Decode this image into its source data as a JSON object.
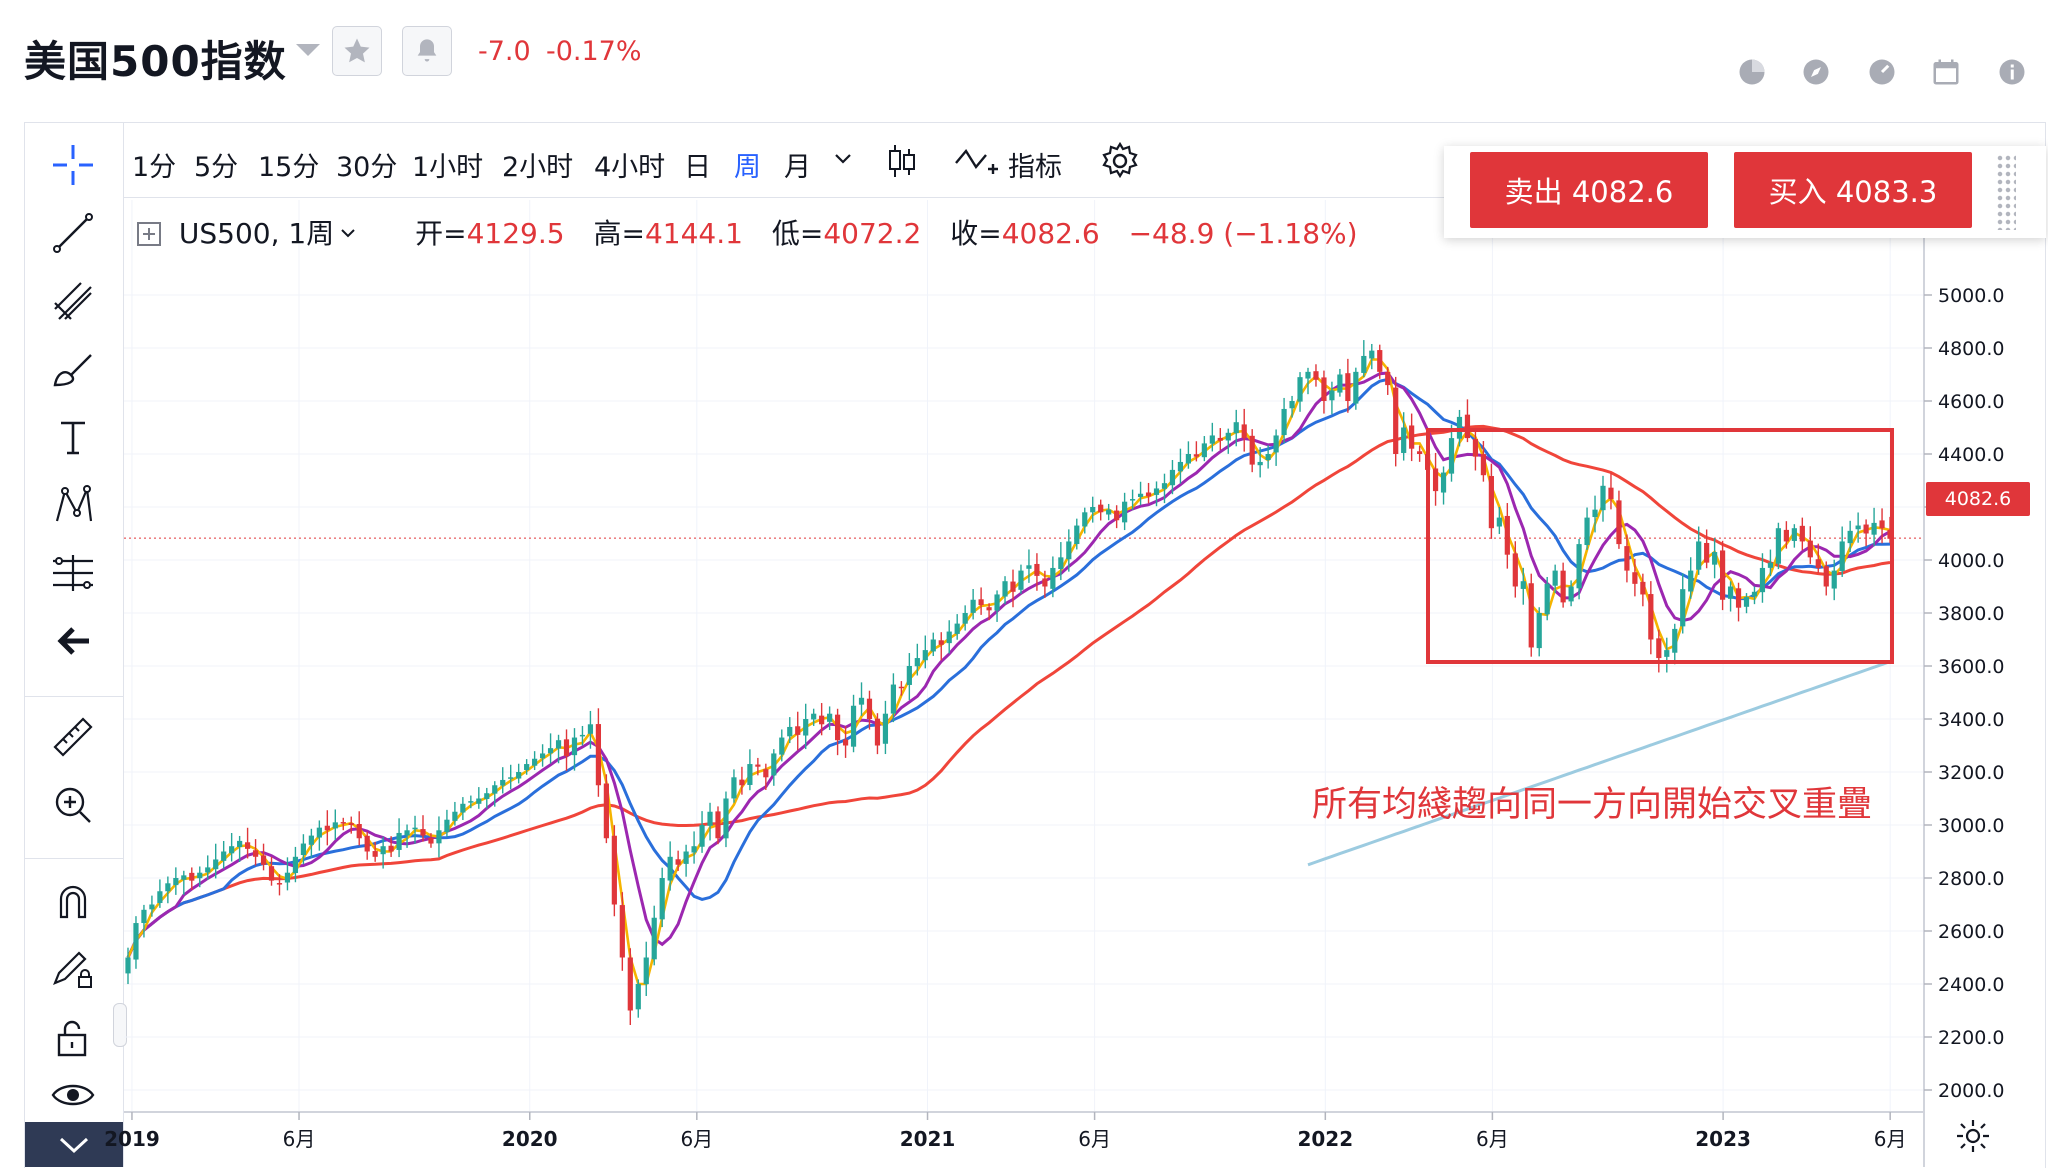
{
  "header": {
    "title": "美国500指数",
    "change_abs": "-7.0",
    "change_pct": "-0.17%",
    "icons": [
      "star-icon",
      "bell-icon",
      "pie-chart-icon",
      "compass-icon",
      "gauge-icon",
      "calendar-icon",
      "info-icon"
    ]
  },
  "toolbar": {
    "timeframes": [
      "1分",
      "5分",
      "15分",
      "30分",
      "1小时",
      "2小时",
      "4小时",
      "日",
      "周",
      "月"
    ],
    "active": "周",
    "indicators_label": "指标"
  },
  "legend": {
    "symbol": "US500, 1周",
    "open_label": "开=",
    "open": "4129.5",
    "high_label": "高=",
    "high": "4144.1",
    "low_label": "低=",
    "low": "4072.2",
    "close_label": "收=",
    "close": "4082.6",
    "change": "−48.9 (−1.18%)"
  },
  "trade": {
    "sell_label": "卖出 4082.6",
    "buy_label": "买入 4083.3"
  },
  "annotation": "所有均綫趨向同一方向開始交叉重疊",
  "price_tag": "4082.6",
  "colors": {
    "up": "#26a69a",
    "down": "#e0363a",
    "ma_fast": "#f5b400",
    "ma_mid": "#9c27b0",
    "ma_slow": "#2a6fdb",
    "ma_long": "#f0453a",
    "ma_longest": "#9ccbe0",
    "accent": "#2962ff"
  },
  "chart_data": {
    "type": "candlestick",
    "interval": "1周",
    "symbol": "US500",
    "ylim": [
      1900,
      5100
    ],
    "y_ticks": [
      "5000.0",
      "4800.0",
      "4600.0",
      "4400.0",
      "4200.0",
      "4000.0",
      "3800.0",
      "3600.0",
      "3400.0",
      "3200.0",
      "3000.0",
      "2800.0",
      "2600.0",
      "2400.0",
      "2200.0",
      "2000.0"
    ],
    "x_ticks": [
      {
        "label": "2019",
        "t": 2019.0,
        "bold": true
      },
      {
        "label": "6月",
        "t": 2019.42,
        "bold": false
      },
      {
        "label": "2020",
        "t": 2020.0,
        "bold": true
      },
      {
        "label": "6月",
        "t": 2020.42,
        "bold": false
      },
      {
        "label": "2021",
        "t": 2021.0,
        "bold": true
      },
      {
        "label": "6月",
        "t": 2021.42,
        "bold": false
      },
      {
        "label": "2022",
        "t": 2022.0,
        "bold": true
      },
      {
        "label": "6月",
        "t": 2022.42,
        "bold": false
      },
      {
        "label": "2023",
        "t": 2023.0,
        "bold": true
      },
      {
        "label": "6月",
        "t": 2023.42,
        "bold": false
      }
    ],
    "xlim": [
      2018.98,
      2023.5
    ],
    "last_price": 4082.6,
    "closes_weekly": [
      2500,
      2630,
      2680,
      2700,
      2750,
      2780,
      2800,
      2810,
      2790,
      2820,
      2840,
      2870,
      2900,
      2920,
      2940,
      2910,
      2880,
      2850,
      2790,
      2780,
      2820,
      2880,
      2930,
      2960,
      2990,
      2980,
      3010,
      3010,
      3000,
      2950,
      2900,
      2880,
      2920,
      2900,
      2970,
      2980,
      2990,
      2960,
      2930,
      2980,
      3020,
      3050,
      3080,
      3090,
      3100,
      3120,
      3150,
      3170,
      3180,
      3200,
      3230,
      3250,
      3270,
      3290,
      3320,
      3260,
      3330,
      3340,
      3380,
      3150,
      2950,
      2700,
      2500,
      2300,
      2400,
      2500,
      2650,
      2800,
      2880,
      2850,
      2900,
      2920,
      3000,
      3050,
      2950,
      3100,
      3180,
      3150,
      3230,
      3220,
      3180,
      3270,
      3330,
      3370,
      3340,
      3400,
      3420,
      3380,
      3420,
      3320,
      3300,
      3450,
      3480,
      3400,
      3300,
      3420,
      3530,
      3520,
      3600,
      3630,
      3660,
      3700,
      3680,
      3730,
      3760,
      3800,
      3850,
      3830,
      3810,
      3870,
      3920,
      3880,
      3960,
      3980,
      3940,
      3900,
      3970,
      4010,
      4070,
      4130,
      4180,
      4200,
      4180,
      4190,
      4150,
      4220,
      4230,
      4250,
      4240,
      4270,
      4290,
      4340,
      4370,
      4400,
      4390,
      4440,
      4470,
      4450,
      4480,
      4520,
      4460,
      4360,
      4370,
      4400,
      4470,
      4570,
      4600,
      4690,
      4710,
      4680,
      4600,
      4640,
      4700,
      4600,
      4710,
      4770,
      4790,
      4710,
      4660,
      4400,
      4500,
      4420,
      4400,
      4340,
      4260,
      4330,
      4460,
      4540,
      4460,
      4390,
      4320,
      4120,
      4160,
      4020,
      3900,
      3920,
      3670,
      3800,
      3910,
      3960,
      3840,
      3900,
      4060,
      4160,
      4190,
      4280,
      4230,
      4060,
      3960,
      3910,
      3870,
      3700,
      3630,
      3660,
      3740,
      3890,
      3960,
      4070,
      3990,
      4030,
      3850,
      3900,
      3820,
      3860,
      3880,
      3970,
      3990,
      4120,
      4070,
      4120,
      4070,
      4010,
      3970,
      3900,
      3960,
      4070,
      4110,
      4130,
      4100,
      4140,
      4120,
      4080
    ],
    "ma_longest_start_week": 148
  }
}
